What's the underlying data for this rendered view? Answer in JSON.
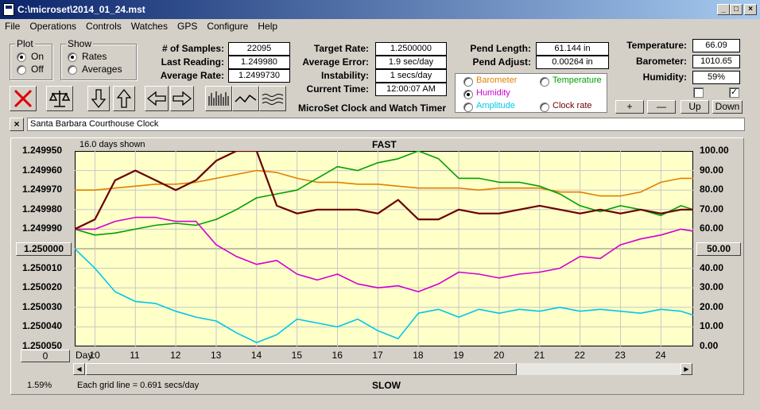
{
  "window": {
    "title": "C:\\microset\\2014_01_24.mst"
  },
  "menu": [
    "File",
    "Operations",
    "Controls",
    "Watches",
    "GPS",
    "Configure",
    "Help"
  ],
  "plot_group": {
    "title": "Plot",
    "on": "On",
    "off": "Off"
  },
  "show_group": {
    "title": "Show",
    "rates": "Rates",
    "averages": "Averages"
  },
  "stats": {
    "samples_label": "# of Samples:",
    "samples": "22095",
    "last_label": "Last Reading:",
    "last": "1.249980",
    "avg_rate_label": "Average Rate:",
    "avg_rate": "1.2499730",
    "target_label": "Target Rate:",
    "target": "1.2500000",
    "avg_err_label": "Average Error:",
    "avg_err": "1.9 sec/day",
    "instab_label": "Instability:",
    "instab": "1 secs/day",
    "time_label": "Current Time:",
    "time": "12:00:07 AM",
    "pend_len_label": "Pend Length:",
    "pend_len": "61.144 in",
    "pend_adj_label": "Pend Adjust:",
    "pend_adj": "0.00264 in",
    "temp_label": "Temperature:",
    "temp": "66.09",
    "baro_label": "Barometer:",
    "baro": "1010.65",
    "hum_label": "Humidity:",
    "hum": "59%"
  },
  "app_caption": "MicroSet Clock and Watch Timer",
  "sensor_options": {
    "barometer": "Barometer",
    "temperature": "Temperature",
    "humidity": "Humidity",
    "amplitude": "Amplitude",
    "clock_rate": "Clock rate"
  },
  "colors": {
    "barometer": "#e08000",
    "temperature": "#00a000",
    "humidity": "#d000d0",
    "amplitude": "#00c8e8",
    "rate": "#6a0000",
    "plot_bg": "#ffffc8"
  },
  "scale_buttons": {
    "plus": "+",
    "minus": "—",
    "up": "Up",
    "down": "Down"
  },
  "clock_name": "Santa Barbara Courthouse Clock",
  "chart": {
    "days_shown": "16.0 days shown",
    "top_label": "FAST",
    "bottom_label": "SLOW",
    "center_left": "1.250000",
    "center_right": "50.00",
    "left_ticks": [
      "1.249950",
      "1.249960",
      "1.249970",
      "1.249980",
      "1.249990",
      "1.250000",
      "1.250010",
      "1.250020",
      "1.250030",
      "1.250040",
      "1.250050"
    ],
    "right_ticks": [
      "100.00",
      "90.00",
      "80.00",
      "70.00",
      "60.00",
      "50.00",
      "40.00",
      "30.00",
      "20.00",
      "10.00",
      "0.00"
    ],
    "day_label": "Day:",
    "days": [
      "10",
      "11",
      "12",
      "13",
      "14",
      "15",
      "16",
      "17",
      "18",
      "19",
      "20",
      "21",
      "22",
      "23",
      "24"
    ],
    "scroll_value": "0",
    "percent": "1.59%",
    "grid_note": "Each grid line = 0.691 secs/day"
  },
  "chart_data": {
    "type": "line",
    "x": [
      9.5,
      10,
      10.5,
      11,
      11.5,
      12,
      12.5,
      13,
      13.5,
      14,
      14.5,
      15,
      15.5,
      16,
      16.5,
      17,
      17.5,
      18,
      18.5,
      19,
      19.5,
      20,
      20.5,
      21,
      21.5,
      22,
      22.5,
      23,
      23.5,
      24,
      24.5,
      24.8
    ],
    "series": [
      {
        "name": "Barometer",
        "axis": "right",
        "values": [
          80,
          80,
          81,
          82,
          83,
          83,
          84,
          86,
          88,
          90,
          89,
          86,
          84,
          84,
          83,
          83,
          82,
          81,
          81,
          81,
          80,
          81,
          81,
          81,
          79,
          79,
          77,
          77,
          79,
          84,
          86,
          86
        ]
      },
      {
        "name": "Temperature",
        "axis": "right",
        "values": [
          60,
          57,
          58,
          60,
          62,
          63,
          62,
          65,
          70,
          76,
          78,
          80,
          86,
          92,
          90,
          94,
          96,
          100,
          96,
          86,
          86,
          84,
          84,
          82,
          78,
          72,
          69,
          72,
          70,
          67,
          72,
          70
        ]
      },
      {
        "name": "Humidity",
        "axis": "right",
        "values": [
          60,
          60,
          64,
          66,
          66,
          64,
          64,
          52,
          46,
          42,
          44,
          37,
          34,
          37,
          32,
          30,
          31,
          28,
          32,
          38,
          37,
          35,
          37,
          38,
          40,
          46,
          45,
          52,
          55,
          57,
          60,
          59
        ]
      },
      {
        "name": "Amplitude",
        "axis": "right",
        "values": [
          50,
          40,
          28,
          23,
          22,
          18,
          15,
          13,
          7,
          2,
          6,
          14,
          12,
          10,
          14,
          8,
          4,
          17,
          19,
          15,
          19,
          17,
          19,
          18,
          20,
          18,
          19,
          18,
          17,
          19,
          18,
          16
        ]
      },
      {
        "name": "Clock rate",
        "axis": "left",
        "values": [
          1.24999,
          1.249985,
          1.249965,
          1.24996,
          1.249965,
          1.24997,
          1.249965,
          1.249955,
          1.24995,
          1.24995,
          1.249978,
          1.249982,
          1.24998,
          1.24998,
          1.24998,
          1.249982,
          1.249975,
          1.249985,
          1.249985,
          1.24998,
          1.249982,
          1.249982,
          1.24998,
          1.249978,
          1.24998,
          1.249982,
          1.24998,
          1.249982,
          1.24998,
          1.249982,
          1.24998,
          1.24998
        ]
      }
    ],
    "xlabel": "Day:",
    "xlim": [
      9.5,
      24.8
    ],
    "ylim_left": [
      1.24995,
      1.25005
    ],
    "ylim_right": [
      0,
      100
    ],
    "grid": true
  }
}
